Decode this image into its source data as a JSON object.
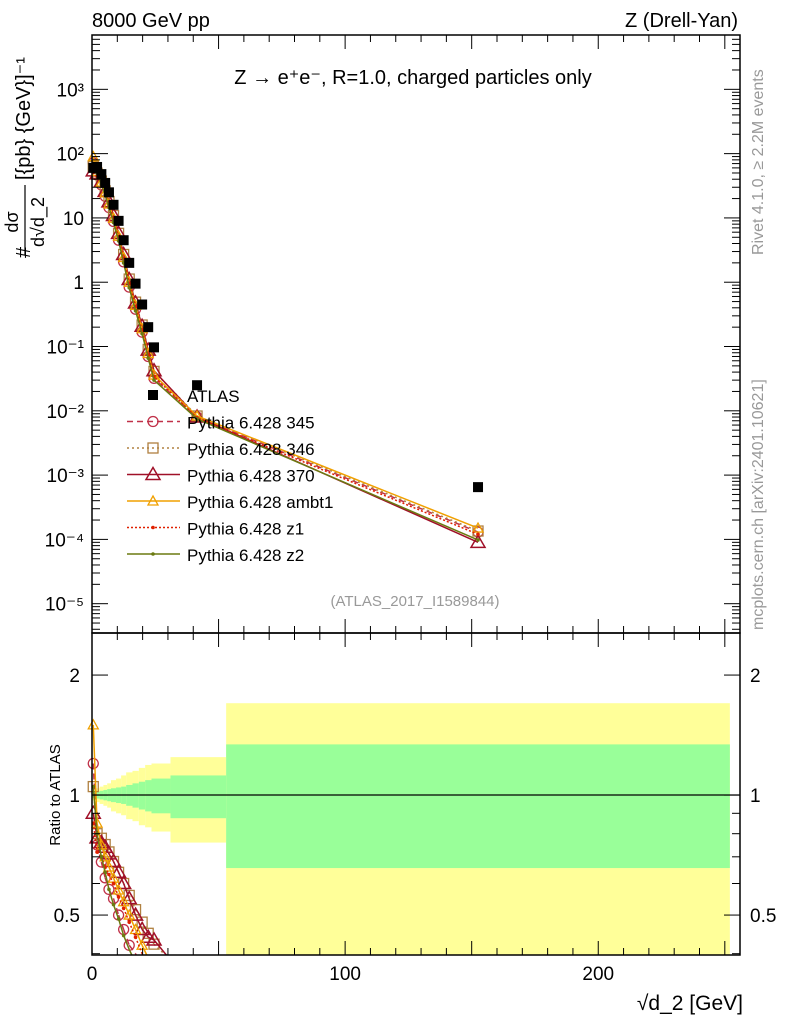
{
  "header": {
    "left": "8000 GeV pp",
    "right": "Z (Drell-Yan)"
  },
  "side_labels": {
    "rivet": "Rivet 4.1.0, ≥ 2.2M events",
    "mcplots": "mcplots.cern.ch [arXiv:2401.10621]"
  },
  "chart_data": {
    "type": "scatter",
    "title": "Z → e⁺e⁻, R=1.0, charged particles only",
    "analysis_id": "(ATLAS_2017_I1589844)",
    "xlabel": "√d_2 [GeV]",
    "ylabel": {
      "num": "dσ",
      "den": "d√d_2",
      "prefix": "#",
      "units": "[{pb} {GeV}]⁻¹"
    },
    "ratio_ylabel": "Ratio to ATLAS",
    "xlim": [
      0,
      256
    ],
    "ylim": [
      3.5e-06,
      7000
    ],
    "ratio_ylim": [
      0.397,
      2.55
    ],
    "x_ticks": [
      "0",
      "100",
      "200"
    ],
    "y_ticks": [
      "10⁻⁵",
      "10⁻⁴",
      "10⁻³",
      "10⁻²",
      "10⁻¹",
      "1",
      "10",
      "10²",
      "10³"
    ],
    "ratio_ticks": [
      "0.5",
      "1",
      "2"
    ],
    "bin_edges": [
      0,
      1,
      3,
      4.5,
      6,
      7.5,
      9.5,
      11.5,
      13.5,
      16,
      18.5,
      21,
      23.5,
      31,
      53,
      252
    ],
    "x": [
      0.5,
      2,
      3.7,
      5.2,
      6.7,
      8.5,
      10.5,
      12.5,
      14.7,
      17.2,
      19.8,
      22.2,
      24.5,
      41.5,
      152.5
    ],
    "reference": {
      "name": "ATLAS",
      "color": "#000000",
      "values": [
        60,
        62,
        48,
        35,
        25,
        16,
        9,
        4.5,
        2.0,
        0.95,
        0.45,
        0.2,
        0.097,
        0.025,
        0.00065
      ],
      "band_green": [
        [
          0.985,
          1.015
        ],
        [
          0.98,
          1.02
        ],
        [
          0.975,
          1.025
        ],
        [
          0.97,
          1.03
        ],
        [
          0.965,
          1.035
        ],
        [
          0.96,
          1.04
        ],
        [
          0.955,
          1.045
        ],
        [
          0.95,
          1.05
        ],
        [
          0.94,
          1.06
        ],
        [
          0.93,
          1.07
        ],
        [
          0.92,
          1.08
        ],
        [
          0.91,
          1.09
        ],
        [
          0.9,
          1.1
        ],
        [
          0.875,
          1.12
        ],
        [
          0.656,
          1.34
        ]
      ],
      "band_yellow": [
        [
          0.97,
          1.03
        ],
        [
          0.96,
          1.04
        ],
        [
          0.95,
          1.05
        ],
        [
          0.94,
          1.06
        ],
        [
          0.93,
          1.07
        ],
        [
          0.91,
          1.09
        ],
        [
          0.9,
          1.1
        ],
        [
          0.89,
          1.12
        ],
        [
          0.87,
          1.14
        ],
        [
          0.86,
          1.15
        ],
        [
          0.84,
          1.17
        ],
        [
          0.83,
          1.19
        ],
        [
          0.81,
          1.2
        ],
        [
          0.76,
          1.245
        ],
        [
          0.3,
          1.7
        ]
      ]
    },
    "series": [
      {
        "name": "Pythia 6.428 345",
        "color": "#c03048",
        "dash": "6,4",
        "marker": "circle",
        "values": [
          72,
          46.5,
          32.6,
          21.7,
          14.5,
          8.8,
          4.5,
          2.07,
          0.84,
          0.38,
          0.167,
          0.07,
          0.032,
          0.008,
          0.00013
        ]
      },
      {
        "name": "Pythia 6.428 346",
        "color": "#b08040",
        "dash": "2,3",
        "marker": "square",
        "values": [
          63,
          49.6,
          37.4,
          26.3,
          18,
          10.9,
          5.76,
          2.7,
          1.12,
          0.49,
          0.216,
          0.09,
          0.041,
          0.0083,
          0.000135
        ]
      },
      {
        "name": "Pythia 6.428 370",
        "color": "#a01028",
        "dash": "",
        "marker": "triangle",
        "values": [
          54,
          48.4,
          36.5,
          25.9,
          17.8,
          10.9,
          5.76,
          2.7,
          1.1,
          0.475,
          0.207,
          0.088,
          0.042,
          0.008,
          9e-05
        ]
      },
      {
        "name": "Pythia 6.428 ambt1",
        "color": "#f0a000",
        "dash": "",
        "marker": "triangle-small",
        "values": [
          90,
          52.7,
          36,
          24.5,
          16.5,
          9.9,
          5.2,
          2.43,
          1.0,
          0.437,
          0.189,
          0.078,
          0.036,
          0.0083,
          0.00015
        ]
      },
      {
        "name": "Pythia 6.428 z1",
        "color": "#e02000",
        "dash": "2,2",
        "marker": "dot",
        "values": [
          51,
          44.6,
          33.6,
          23.1,
          15.8,
          9.6,
          5.0,
          2.34,
          0.96,
          0.418,
          0.18,
          0.074,
          0.034,
          0.0078,
          0.00012
        ]
      },
      {
        "name": "Pythia 6.428 z2",
        "color": "#6b7a10",
        "dash": "",
        "marker": "dot",
        "values": [
          63,
          49.6,
          33.6,
          22.4,
          14.5,
          8.5,
          4.4,
          2.0,
          0.82,
          0.36,
          0.158,
          0.066,
          0.03,
          0.0075,
          9.8e-05
        ]
      }
    ]
  }
}
